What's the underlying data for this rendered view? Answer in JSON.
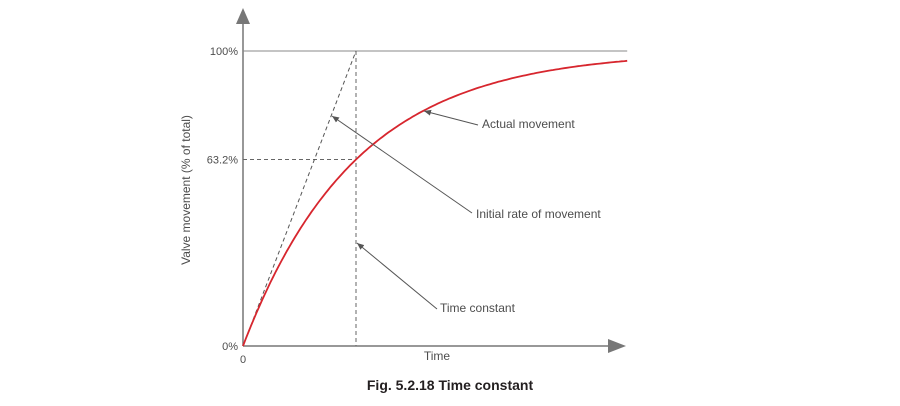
{
  "chart_data": {
    "type": "line",
    "ylabel": "Valve movement (% of total)",
    "xlabel": "Time",
    "x_origin_label": "0",
    "ylim": [
      0,
      100
    ],
    "yticks": [
      {
        "value": 0,
        "label": "0%"
      },
      {
        "value": 63.2,
        "label": "63.2%"
      },
      {
        "value": 100,
        "label": "100%"
      }
    ],
    "time_constant": 1,
    "x_range_in_time_constants": [
      0,
      3.4
    ],
    "series": [
      {
        "key": "actual",
        "curve": "first-order step response",
        "color": "#d7262e"
      },
      {
        "key": "initial_rate",
        "curve": "initial tangent line",
        "color": "#555555"
      }
    ],
    "annotations": [
      {
        "key": "actual",
        "text": "Actual movement"
      },
      {
        "key": "initial_rate",
        "text": "Initial rate of movement"
      },
      {
        "key": "time_constant",
        "text": "Time constant"
      }
    ],
    "caption": "Fig. 5.2.18 Time constant"
  }
}
